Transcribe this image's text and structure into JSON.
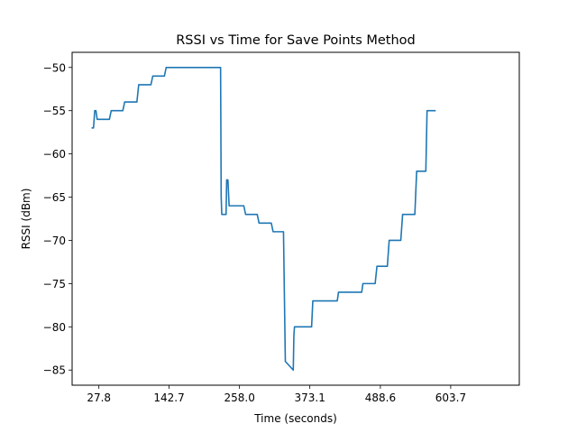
{
  "chart_data": {
    "type": "line",
    "title": "RSSI vs Time for Save Points Method",
    "xlabel": "Time (seconds)",
    "ylabel": "RSSI (dBm)",
    "xlim": [
      -16,
      716
    ],
    "ylim": [
      -86.75,
      -48.25
    ],
    "x_ticks": [
      27.8,
      142.7,
      258.0,
      373.1,
      488.6,
      603.7
    ],
    "x_tick_labels": [
      "27.8",
      "142.7",
      "258.0",
      "373.1",
      "488.6",
      "603.7"
    ],
    "y_ticks": [
      -85,
      -80,
      -75,
      -70,
      -65,
      -60,
      -55,
      -50
    ],
    "y_tick_labels": [
      "−85",
      "−80",
      "−75",
      "−70",
      "−65",
      "−60",
      "−55",
      "−50"
    ],
    "grid": false,
    "series": [
      {
        "color": "#1f77b4",
        "x": [
          17,
          19,
          21,
          23,
          25,
          26,
          27.5,
          45,
          48,
          67,
          70,
          90,
          93,
          113,
          116,
          135,
          138,
          150,
          153,
          163,
          166,
          224,
          227,
          228,
          229,
          230,
          236,
          237,
          239,
          241,
          242,
          245,
          265,
          268,
          287,
          290,
          310,
          313,
          330,
          333,
          346,
          347,
          348,
          349,
          350,
          351,
          352,
          376,
          378,
          418,
          420,
          458,
          460,
          480,
          483,
          500,
          503,
          522,
          525,
          545,
          548,
          563,
          565,
          570,
          572,
          578
        ],
        "y": [
          -57,
          -57,
          -55,
          -55,
          -56,
          -56,
          -56,
          -56,
          -55,
          -55,
          -54,
          -54,
          -52,
          -52,
          -51,
          -51,
          -50,
          -50,
          -50,
          -50,
          -50,
          -50,
          -50,
          -65,
          -67,
          -67,
          -67,
          -63,
          -63,
          -66,
          -66,
          -66,
          -66,
          -67,
          -67,
          -68,
          -68,
          -69,
          -69,
          -84,
          -85,
          -81,
          -80,
          -80,
          -80,
          -80,
          -80,
          -80,
          -77,
          -77,
          -76,
          -76,
          -75,
          -75,
          -73,
          -73,
          -70,
          -70,
          -67,
          -67,
          -62,
          -62,
          -55,
          -55,
          -55,
          -55
        ]
      }
    ]
  }
}
